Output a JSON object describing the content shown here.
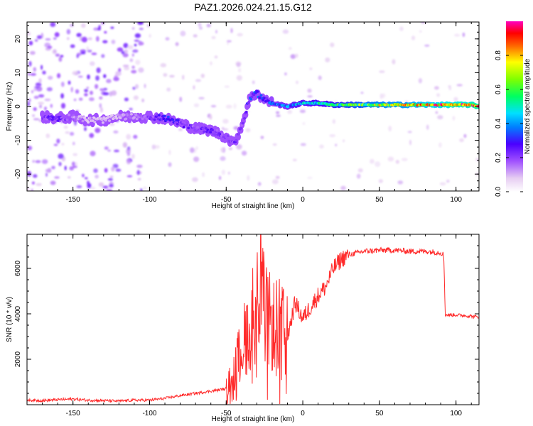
{
  "figure": {
    "title": "PAZ1.2026.024.21.15.G12"
  },
  "chart_data": [
    {
      "type": "heatmap",
      "xlabel": "Height of straight line (km)",
      "ylabel": "Frequency (Hz)",
      "xlim": [
        -180,
        115
      ],
      "ylim": [
        -25,
        25
      ],
      "xticks": [
        -150,
        -100,
        -50,
        0,
        50,
        100
      ],
      "yticks": [
        -20,
        -10,
        0,
        10,
        20
      ],
      "colorbar": {
        "label": "Normalized spectral amplitude",
        "range": [
          0,
          1
        ],
        "ticks": [
          0.0,
          0.2,
          0.4,
          0.6,
          0.8
        ],
        "colormap": "white-violet-blue-cyan-green-yellow-red-magenta"
      },
      "ridge": {
        "x": [
          -170,
          -160,
          -150,
          -140,
          -130,
          -120,
          -110,
          -100,
          -90,
          -80,
          -70,
          -60,
          -50,
          -45,
          -40,
          -35,
          -30,
          -25,
          -20,
          -15,
          -10,
          -5,
          0,
          10,
          20,
          30,
          40,
          50,
          60,
          70,
          80,
          90,
          100,
          110,
          115
        ],
        "frequency": [
          -3,
          -3.5,
          -3,
          -4,
          -4,
          -3,
          -3,
          -3,
          -3.5,
          -5,
          -6.5,
          -7,
          -9,
          -11,
          -6,
          2,
          4,
          2,
          1,
          0.5,
          0,
          0.5,
          1,
          1,
          0.5,
          0.5,
          0.5,
          0.5,
          0.5,
          0.5,
          0.5,
          0.5,
          0.5,
          0.5,
          0
        ],
        "amplitude": [
          0.2,
          0.25,
          0.15,
          0.1,
          0.1,
          0.12,
          0.15,
          0.2,
          0.3,
          0.25,
          0.2,
          0.25,
          0.2,
          0.22,
          0.2,
          0.3,
          0.35,
          0.3,
          0.35,
          0.4,
          0.4,
          0.45,
          0.45,
          0.5,
          0.55,
          0.6,
          0.65,
          0.7,
          0.72,
          0.75,
          0.8,
          0.85,
          0.88,
          0.9,
          0.95
        ]
      }
    },
    {
      "type": "line",
      "xlabel": "Height of straight line (km)",
      "ylabel": "SNR (10 * v/v)",
      "xlim": [
        -180,
        115
      ],
      "ylim": [
        0,
        7500
      ],
      "xticks": [
        -150,
        -100,
        -50,
        0,
        50,
        100
      ],
      "yticks": [
        2000,
        4000,
        6000
      ],
      "series": [
        {
          "name": "SNR",
          "color": "#ff2a2a",
          "x": [
            -180,
            -170,
            -160,
            -150,
            -140,
            -130,
            -120,
            -110,
            -100,
            -90,
            -80,
            -70,
            -60,
            -50,
            -45,
            -40,
            -35,
            -30,
            -28,
            -25,
            -20,
            -15,
            -10,
            -5,
            0,
            5,
            10,
            15,
            20,
            25,
            30,
            40,
            50,
            60,
            70,
            80,
            90,
            92,
            93,
            100,
            110,
            115
          ],
          "y": [
            200,
            180,
            220,
            250,
            200,
            180,
            160,
            200,
            200,
            280,
            400,
            500,
            600,
            700,
            1500,
            2500,
            3500,
            4500,
            5500,
            4000,
            3500,
            3500,
            3000,
            4500,
            3800,
            4300,
            4800,
            5200,
            6000,
            6400,
            6600,
            6750,
            6800,
            6800,
            6750,
            6750,
            6700,
            6600,
            3950,
            3950,
            3900,
            3850
          ]
        }
      ]
    }
  ]
}
